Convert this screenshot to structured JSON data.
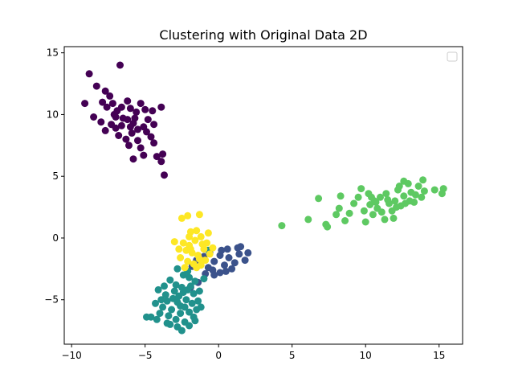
{
  "chart_data": {
    "type": "scatter",
    "title": "Clustering with Original Data 2D",
    "xlabel": "",
    "ylabel": "",
    "xlim": [
      -10.5,
      16.6
    ],
    "ylim": [
      -8.6,
      15.5
    ],
    "xticks": [
      -10,
      -5,
      0,
      5,
      10,
      15
    ],
    "xtick_labels": [
      "−10",
      "−5",
      "0",
      "5",
      "10",
      "15"
    ],
    "yticks": [
      -5,
      0,
      5,
      10,
      15
    ],
    "ytick_labels": [
      "−5",
      "0",
      "5",
      "10",
      "15"
    ],
    "grid": false,
    "legend": {
      "placement": "top-right",
      "entries": []
    },
    "series": [
      {
        "color": "#440154",
        "points": [
          [
            -8.8,
            13.3
          ],
          [
            -6.7,
            14.0
          ],
          [
            -9.1,
            10.9
          ],
          [
            -8.3,
            12.3
          ],
          [
            -7.7,
            11.9
          ],
          [
            -7.4,
            11.5
          ],
          [
            -7.9,
            11.0
          ],
          [
            -7.6,
            10.6
          ],
          [
            -7.2,
            10.9
          ],
          [
            -6.9,
            10.3
          ],
          [
            -7.0,
            9.8
          ],
          [
            -6.6,
            10.6
          ],
          [
            -6.2,
            11.1
          ],
          [
            -6.0,
            10.5
          ],
          [
            -5.6,
            10.2
          ],
          [
            -5.3,
            10.9
          ],
          [
            -5.0,
            10.4
          ],
          [
            -3.9,
            10.6
          ],
          [
            -4.5,
            10.3
          ],
          [
            -8.5,
            9.8
          ],
          [
            -8.0,
            9.4
          ],
          [
            -7.7,
            8.7
          ],
          [
            -7.3,
            9.2
          ],
          [
            -7.0,
            8.9
          ],
          [
            -6.6,
            9.1
          ],
          [
            -6.2,
            9.6
          ],
          [
            -5.8,
            9.3
          ],
          [
            -5.5,
            8.8
          ],
          [
            -5.1,
            9.0
          ],
          [
            -4.8,
            9.6
          ],
          [
            -4.4,
            9.2
          ],
          [
            -6.8,
            8.3
          ],
          [
            -6.3,
            8.0
          ],
          [
            -5.9,
            8.5
          ],
          [
            -5.5,
            7.9
          ],
          [
            -4.9,
            8.6
          ],
          [
            -4.6,
            8.2
          ],
          [
            -6.1,
            7.5
          ],
          [
            -5.3,
            7.3
          ],
          [
            -4.4,
            7.7
          ],
          [
            -5.1,
            6.7
          ],
          [
            -4.2,
            6.6
          ],
          [
            -5.8,
            6.4
          ],
          [
            -3.9,
            6.2
          ],
          [
            -3.7,
            5.1
          ],
          [
            -3.8,
            6.8
          ],
          [
            -6.5,
            9.7
          ],
          [
            -7.1,
            10.0
          ],
          [
            -6.0,
            9.0
          ],
          [
            -5.7,
            9.7
          ]
        ]
      },
      {
        "color": "#3b528b",
        "points": [
          [
            -1.5,
            -1.8
          ],
          [
            -1.0,
            -1.5
          ],
          [
            -0.7,
            -2.4
          ],
          [
            -0.3,
            -1.9
          ],
          [
            0.1,
            -1.4
          ],
          [
            0.4,
            -2.2
          ],
          [
            0.7,
            -1.6
          ],
          [
            1.1,
            -2.0
          ],
          [
            1.4,
            -1.3
          ],
          [
            1.8,
            -1.8
          ],
          [
            2.0,
            -1.2
          ],
          [
            1.3,
            -0.8
          ],
          [
            0.6,
            -0.9
          ],
          [
            0.1,
            -2.8
          ],
          [
            -0.4,
            -2.6
          ],
          [
            0.5,
            -2.7
          ],
          [
            -1.8,
            -2.3
          ],
          [
            -0.9,
            -2.9
          ],
          [
            -1.4,
            -3.6
          ],
          [
            -0.3,
            -3.0
          ],
          [
            0.9,
            -2.5
          ],
          [
            1.5,
            -0.7
          ],
          [
            0.2,
            -1.0
          ],
          [
            -0.6,
            -1.2
          ],
          [
            -1.9,
            -4.0
          ]
        ]
      },
      {
        "color": "#21918c",
        "points": [
          [
            -2.8,
            -2.5
          ],
          [
            -2.4,
            -3.0
          ],
          [
            -2.0,
            -3.2
          ],
          [
            -1.6,
            -3.5
          ],
          [
            -3.3,
            -3.4
          ],
          [
            -3.7,
            -3.9
          ],
          [
            -2.9,
            -3.8
          ],
          [
            -2.5,
            -4.0
          ],
          [
            -2.1,
            -4.2
          ],
          [
            -1.7,
            -4.5
          ],
          [
            -4.1,
            -4.2
          ],
          [
            -3.6,
            -4.6
          ],
          [
            -3.1,
            -4.9
          ],
          [
            -2.7,
            -4.7
          ],
          [
            -2.2,
            -5.0
          ],
          [
            -1.8,
            -5.3
          ],
          [
            -1.4,
            -5.1
          ],
          [
            -4.3,
            -5.3
          ],
          [
            -3.8,
            -5.6
          ],
          [
            -3.2,
            -5.8
          ],
          [
            -2.6,
            -5.5
          ],
          [
            -2.0,
            -6.0
          ],
          [
            -1.5,
            -5.8
          ],
          [
            -4.0,
            -6.1
          ],
          [
            -3.4,
            -6.3
          ],
          [
            -2.9,
            -6.6
          ],
          [
            -2.3,
            -6.8
          ],
          [
            -1.7,
            -6.4
          ],
          [
            -4.6,
            -6.4
          ],
          [
            -4.2,
            -6.6
          ],
          [
            -3.5,
            -6.9
          ],
          [
            -2.8,
            -7.2
          ],
          [
            -2.5,
            -7.5
          ],
          [
            -2.0,
            -7.1
          ],
          [
            -3.0,
            -4.3
          ],
          [
            -2.4,
            -4.4
          ],
          [
            -1.9,
            -3.9
          ],
          [
            -3.5,
            -5.1
          ],
          [
            -2.8,
            -5.2
          ],
          [
            -2.3,
            -5.6
          ],
          [
            -1.3,
            -4.3
          ],
          [
            -1.0,
            -3.3
          ],
          [
            -0.7,
            -1.0
          ],
          [
            -2.1,
            -2.7
          ],
          [
            -4.9,
            -6.4
          ],
          [
            -1.6,
            -6.7
          ],
          [
            -3.9,
            -5.0
          ],
          [
            -1.2,
            -5.6
          ],
          [
            -2.6,
            -6.1
          ],
          [
            -3.3,
            -7.0
          ]
        ]
      },
      {
        "color": "#5ec962",
        "points": [
          [
            4.3,
            1.0
          ],
          [
            6.1,
            1.5
          ],
          [
            6.8,
            3.2
          ],
          [
            7.3,
            1.1
          ],
          [
            7.4,
            0.9
          ],
          [
            8.0,
            1.9
          ],
          [
            8.2,
            2.4
          ],
          [
            8.3,
            3.4
          ],
          [
            8.6,
            1.4
          ],
          [
            8.9,
            2.0
          ],
          [
            9.2,
            2.8
          ],
          [
            9.5,
            3.3
          ],
          [
            9.7,
            4.0
          ],
          [
            9.9,
            2.2
          ],
          [
            10.0,
            1.3
          ],
          [
            10.2,
            3.6
          ],
          [
            10.3,
            2.7
          ],
          [
            10.5,
            1.9
          ],
          [
            10.6,
            3.0
          ],
          [
            10.8,
            2.4
          ],
          [
            11.0,
            3.3
          ],
          [
            11.1,
            2.1
          ],
          [
            11.3,
            1.5
          ],
          [
            11.4,
            3.6
          ],
          [
            11.6,
            2.8
          ],
          [
            11.8,
            2.2
          ],
          [
            11.9,
            1.6
          ],
          [
            12.0,
            3.0
          ],
          [
            12.2,
            3.9
          ],
          [
            12.3,
            4.2
          ],
          [
            12.4,
            2.6
          ],
          [
            12.6,
            3.4
          ],
          [
            12.7,
            2.8
          ],
          [
            12.9,
            4.4
          ],
          [
            13.0,
            3.0
          ],
          [
            13.1,
            3.7
          ],
          [
            13.3,
            2.9
          ],
          [
            13.4,
            3.5
          ],
          [
            13.6,
            4.2
          ],
          [
            13.8,
            3.3
          ],
          [
            13.9,
            4.7
          ],
          [
            14.0,
            3.8
          ],
          [
            14.7,
            3.9
          ],
          [
            15.2,
            3.6
          ],
          [
            15.3,
            4.0
          ],
          [
            12.6,
            4.6
          ],
          [
            10.7,
            2.9
          ],
          [
            11.5,
            3.1
          ],
          [
            12.1,
            2.5
          ],
          [
            10.4,
            3.3
          ]
        ]
      },
      {
        "color": "#fde725",
        "points": [
          [
            -2.1,
            1.8
          ],
          [
            -2.5,
            1.6
          ],
          [
            -1.3,
            1.9
          ],
          [
            -1.9,
            0.5
          ],
          [
            -1.5,
            0.6
          ],
          [
            -2.4,
            -0.4
          ],
          [
            -2.0,
            -0.6
          ],
          [
            -1.6,
            -0.2
          ],
          [
            -1.2,
            0.1
          ],
          [
            -0.8,
            -0.4
          ],
          [
            -2.2,
            -1.0
          ],
          [
            -1.8,
            -1.2
          ],
          [
            -1.4,
            -1.4
          ],
          [
            -1.0,
            -0.9
          ],
          [
            -0.6,
            -1.3
          ],
          [
            -2.6,
            -1.6
          ],
          [
            -2.1,
            -1.9
          ],
          [
            -1.7,
            -2.1
          ],
          [
            -1.3,
            -1.7
          ],
          [
            -0.9,
            -1.8
          ],
          [
            -2.0,
            0.1
          ],
          [
            -1.1,
            -0.5
          ],
          [
            -3.0,
            -0.3
          ],
          [
            -2.3,
            -2.4
          ],
          [
            -1.5,
            -2.4
          ],
          [
            -0.4,
            -0.8
          ],
          [
            -0.7,
            0.4
          ],
          [
            -1.9,
            -0.9
          ],
          [
            -2.7,
            -0.9
          ],
          [
            -1.2,
            -2.2
          ]
        ]
      }
    ]
  }
}
